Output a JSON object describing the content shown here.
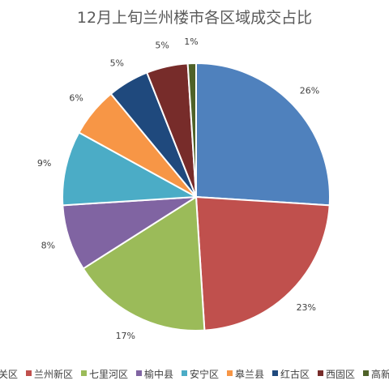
{
  "chart_data": {
    "type": "pie",
    "title": "12月上旬兰州楼市各区域成交占比",
    "start_angle_deg": 0,
    "direction": "clockwise",
    "legend_position": "bottom",
    "slices": [
      {
        "name": "城关区",
        "value": 26,
        "label": "26%",
        "color": "#4f81bd"
      },
      {
        "name": "兰州新区",
        "value": 23,
        "label": "23%",
        "color": "#c0504d"
      },
      {
        "name": "七里河区",
        "value": 17,
        "label": "17%",
        "color": "#9bbb59"
      },
      {
        "name": "榆中县",
        "value": 8,
        "label": "8%",
        "color": "#8064a2"
      },
      {
        "name": "安宁区",
        "value": 9,
        "label": "9%",
        "color": "#4bacc6"
      },
      {
        "name": "皋兰县",
        "value": 6,
        "label": "6%",
        "color": "#f79646"
      },
      {
        "name": "红古区",
        "value": 5,
        "label": "5%",
        "color": "#1f497d"
      },
      {
        "name": "西固区",
        "value": 5,
        "label": "5%",
        "color": "#772c2a"
      },
      {
        "name": "高新区",
        "value": 1,
        "label": "1%",
        "color": "#4f6228"
      }
    ]
  }
}
